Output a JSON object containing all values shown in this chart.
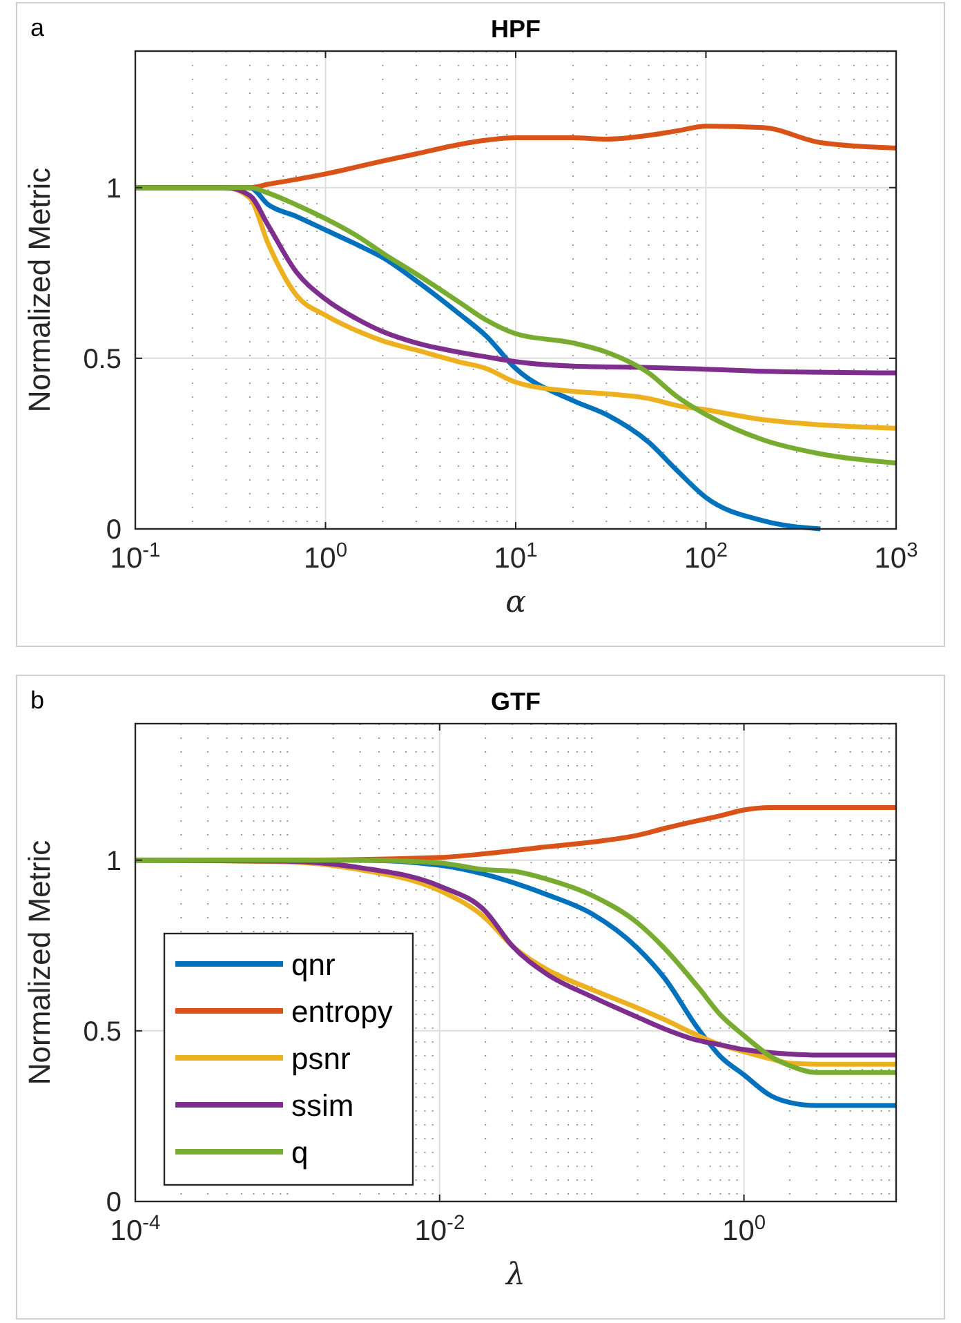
{
  "chart_data": [
    {
      "type": "line",
      "title": "HPF",
      "xlabel": "α",
      "ylabel": "Normalized Metric",
      "annotations": [
        "a"
      ],
      "log": "x",
      "grid": true,
      "legend": false,
      "line_style": "solid",
      "marker": "none",
      "xlim": [
        0.1,
        1000
      ],
      "ylim": [
        0,
        1.4
      ],
      "xticks": [
        {
          "value": 0.1,
          "label": "10$^{-1}$"
        },
        {
          "value": 1,
          "label": "10$^{0}$"
        },
        {
          "value": 10,
          "label": "10$^{1}$"
        },
        {
          "value": 100,
          "label": "10$^{2}$"
        },
        {
          "value": 1000,
          "label": "10$^{3}$"
        }
      ],
      "yticks": [
        0,
        0.5,
        1
      ],
      "series": [
        {
          "color": "#0072bd",
          "x": [
            0.1,
            0.3,
            0.4,
            0.5,
            0.7,
            1,
            1.5,
            2,
            3,
            5,
            7,
            10,
            20,
            30,
            50,
            70,
            100,
            200,
            400
          ],
          "values": [
            1,
            1,
            1,
            0.95,
            0.916,
            0.876,
            0.83,
            0.795,
            0.727,
            0.632,
            0.565,
            0.47,
            0.376,
            0.335,
            0.254,
            0.173,
            0.092,
            0.024,
            0
          ]
        },
        {
          "color": "#d95319",
          "x": [
            0.1,
            0.3,
            0.4,
            0.5,
            0.7,
            1,
            2,
            3,
            5,
            7,
            10,
            20,
            30,
            50,
            70,
            100,
            200,
            400,
            1000
          ],
          "values": [
            1,
            1,
            1,
            1.01,
            1.024,
            1.04,
            1.078,
            1.099,
            1.126,
            1.139,
            1.146,
            1.146,
            1.142,
            1.153,
            1.166,
            1.18,
            1.176,
            1.132,
            1.116
          ]
        },
        {
          "color": "#edb120",
          "x": [
            0.1,
            0.3,
            0.4,
            0.5,
            0.7,
            1,
            1.5,
            2,
            3,
            5,
            7,
            10,
            20,
            30,
            50,
            70,
            100,
            200,
            400,
            1000
          ],
          "values": [
            1,
            1,
            0.97,
            0.835,
            0.686,
            0.626,
            0.578,
            0.551,
            0.524,
            0.49,
            0.47,
            0.43,
            0.403,
            0.396,
            0.382,
            0.362,
            0.349,
            0.32,
            0.305,
            0.295
          ]
        },
        {
          "color": "#7e2f8e",
          "x": [
            0.1,
            0.3,
            0.4,
            0.5,
            0.7,
            1,
            1.5,
            2,
            3,
            5,
            7,
            10,
            20,
            50,
            100,
            200,
            1000
          ],
          "values": [
            1,
            1,
            0.977,
            0.889,
            0.754,
            0.673,
            0.612,
            0.578,
            0.545,
            0.518,
            0.504,
            0.49,
            0.477,
            0.473,
            0.468,
            0.462,
            0.457
          ]
        },
        {
          "color": "#77ac30",
          "x": [
            0.1,
            0.3,
            0.4,
            0.5,
            0.7,
            1,
            1.5,
            2,
            3,
            5,
            7,
            10,
            20,
            30,
            50,
            70,
            100,
            200,
            400,
            1000
          ],
          "values": [
            1,
            1,
            1,
            0.984,
            0.95,
            0.909,
            0.855,
            0.808,
            0.747,
            0.666,
            0.612,
            0.572,
            0.545,
            0.518,
            0.457,
            0.389,
            0.335,
            0.261,
            0.22,
            0.193
          ]
        }
      ]
    },
    {
      "type": "line",
      "title": "GTF",
      "xlabel": "λ",
      "ylabel": "Normalized Metric",
      "annotations": [
        "b"
      ],
      "log": "x",
      "grid": true,
      "legend": "bottom left",
      "line_style": "solid",
      "marker": "none",
      "xlim": [
        0.0001,
        10
      ],
      "ylim": [
        0,
        1.4
      ],
      "xticks": [
        {
          "value": 0.0001,
          "label": "10$^{-4}$"
        },
        {
          "value": 0.01,
          "label": "10$^{-2}$"
        },
        {
          "value": 1,
          "label": "10$^{0}$"
        }
      ],
      "yticks": [
        0,
        0.5,
        1
      ],
      "series": [
        {
          "name": "qnr",
          "color": "#0072bd",
          "x": [
            0.0001,
            0.001,
            0.003,
            0.01,
            0.02,
            0.05,
            0.1,
            0.2,
            0.3,
            0.5,
            0.7,
            1,
            1.5,
            2,
            3,
            10
          ],
          "values": [
            1,
            1,
            1,
            0.985,
            0.958,
            0.9,
            0.843,
            0.742,
            0.655,
            0.506,
            0.425,
            0.371,
            0.31,
            0.29,
            0.281,
            0.281
          ]
        },
        {
          "name": "entropy",
          "color": "#d95319",
          "x": [
            0.0001,
            0.001,
            0.01,
            0.02,
            0.05,
            0.1,
            0.2,
            0.3,
            0.5,
            0.7,
            1,
            1.5,
            3,
            10
          ],
          "values": [
            1,
            1,
            1.008,
            1.019,
            1.039,
            1.053,
            1.073,
            1.093,
            1.116,
            1.13,
            1.147,
            1.154,
            1.154,
            1.154
          ]
        },
        {
          "name": "psnr",
          "color": "#edb120",
          "x": [
            0.0001,
            0.001,
            0.003,
            0.01,
            0.02,
            0.03,
            0.05,
            0.1,
            0.2,
            0.3,
            0.5,
            0.7,
            1,
            1.5,
            2,
            3,
            10
          ],
          "values": [
            1,
            0.995,
            0.972,
            0.911,
            0.83,
            0.749,
            0.681,
            0.621,
            0.567,
            0.533,
            0.486,
            0.459,
            0.439,
            0.418,
            0.405,
            0.402,
            0.402
          ]
        },
        {
          "name": "ssim",
          "color": "#7e2f8e",
          "x": [
            0.0001,
            0.001,
            0.003,
            0.01,
            0.02,
            0.03,
            0.05,
            0.1,
            0.2,
            0.3,
            0.5,
            0.7,
            1,
            1.5,
            2,
            3,
            10
          ],
          "values": [
            1,
            0.997,
            0.978,
            0.924,
            0.85,
            0.749,
            0.668,
            0.6,
            0.54,
            0.506,
            0.472,
            0.459,
            0.445,
            0.436,
            0.432,
            0.429,
            0.429
          ]
        },
        {
          "name": "q",
          "color": "#77ac30",
          "x": [
            0.0001,
            0.001,
            0.003,
            0.01,
            0.02,
            0.03,
            0.05,
            0.1,
            0.2,
            0.3,
            0.5,
            0.7,
            1,
            1.5,
            2,
            3,
            10
          ],
          "values": [
            1,
            1,
            1,
            0.992,
            0.972,
            0.968,
            0.945,
            0.897,
            0.816,
            0.742,
            0.628,
            0.547,
            0.486,
            0.425,
            0.398,
            0.378,
            0.378
          ]
        }
      ]
    }
  ]
}
